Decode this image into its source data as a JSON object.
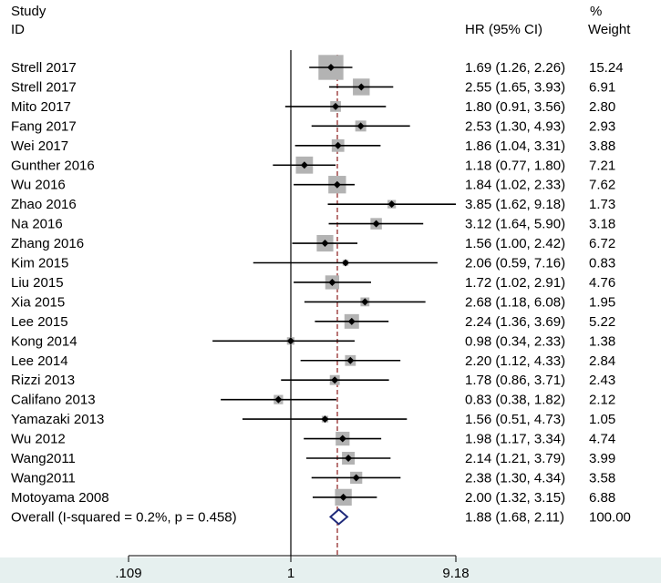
{
  "headers": {
    "study": "Study",
    "id": "ID",
    "hr": "HR (95% CI)",
    "pct": "%",
    "weight": "Weight"
  },
  "chart_data": {
    "type": "forest",
    "xscale": "log",
    "xlim": [
      0.109,
      9.18
    ],
    "xticks": [
      ".109",
      "1",
      "9.18"
    ],
    "null_line": 1,
    "pooled_line": 1.88,
    "studies": [
      {
        "id": "Strell 2017",
        "hr": 1.69,
        "lo": 1.26,
        "hi": 2.26,
        "ci_text": "1.69 (1.26, 2.26)",
        "weight": 15.24,
        "weight_text": "15.24"
      },
      {
        "id": "Strell 2017",
        "hr": 2.55,
        "lo": 1.65,
        "hi": 3.93,
        "ci_text": "2.55 (1.65, 3.93)",
        "weight": 6.91,
        "weight_text": "6.91"
      },
      {
        "id": "Mito 2017",
        "hr": 1.8,
        "lo": 0.91,
        "hi": 3.56,
        "ci_text": "1.80 (0.91, 3.56)",
        "weight": 2.8,
        "weight_text": "2.80"
      },
      {
        "id": "Fang 2017",
        "hr": 2.53,
        "lo": 1.3,
        "hi": 4.93,
        "ci_text": "2.53 (1.30, 4.93)",
        "weight": 2.93,
        "weight_text": "2.93"
      },
      {
        "id": "Wei 2017",
        "hr": 1.86,
        "lo": 1.04,
        "hi": 3.31,
        "ci_text": "1.86 (1.04, 3.31)",
        "weight": 3.88,
        "weight_text": "3.88"
      },
      {
        "id": "Gunther 2016",
        "hr": 1.18,
        "lo": 0.77,
        "hi": 1.8,
        "ci_text": "1.18 (0.77, 1.80)",
        "weight": 7.21,
        "weight_text": "7.21"
      },
      {
        "id": "Wu 2016",
        "hr": 1.84,
        "lo": 1.02,
        "hi": 2.33,
        "ci_text": "1.84 (1.02, 2.33)",
        "weight": 7.62,
        "weight_text": "7.62"
      },
      {
        "id": "Zhao 2016",
        "hr": 3.85,
        "lo": 1.62,
        "hi": 9.18,
        "ci_text": "3.85 (1.62, 9.18)",
        "weight": 1.73,
        "weight_text": "1.73"
      },
      {
        "id": "Na 2016",
        "hr": 3.12,
        "lo": 1.64,
        "hi": 5.9,
        "ci_text": "3.12 (1.64, 5.90)",
        "weight": 3.18,
        "weight_text": "3.18"
      },
      {
        "id": "Zhang 2016",
        "hr": 1.56,
        "lo": 1.0,
        "hi": 2.42,
        "ci_text": "1.56 (1.00, 2.42)",
        "weight": 6.72,
        "weight_text": "6.72"
      },
      {
        "id": "Kim 2015",
        "hr": 2.06,
        "lo": 0.59,
        "hi": 7.16,
        "ci_text": "2.06 (0.59, 7.16)",
        "weight": 0.83,
        "weight_text": "0.83"
      },
      {
        "id": "Liu 2015",
        "hr": 1.72,
        "lo": 1.02,
        "hi": 2.91,
        "ci_text": "1.72 (1.02, 2.91)",
        "weight": 4.76,
        "weight_text": "4.76"
      },
      {
        "id": "Xia 2015",
        "hr": 2.68,
        "lo": 1.18,
        "hi": 6.08,
        "ci_text": "2.68 (1.18, 6.08)",
        "weight": 1.95,
        "weight_text": "1.95"
      },
      {
        "id": "Lee 2015",
        "hr": 2.24,
        "lo": 1.36,
        "hi": 3.69,
        "ci_text": "2.24 (1.36, 3.69)",
        "weight": 5.22,
        "weight_text": "5.22"
      },
      {
        "id": "Kong 2014",
        "hr": 0.98,
        "lo": 0.34,
        "hi": 2.33,
        "ci_text": "0.98 (0.34, 2.33)",
        "weight": 1.38,
        "weight_text": "1.38"
      },
      {
        "id": "Lee 2014",
        "hr": 2.2,
        "lo": 1.12,
        "hi": 4.33,
        "ci_text": "2.20 (1.12, 4.33)",
        "weight": 2.84,
        "weight_text": "2.84"
      },
      {
        "id": "Rizzi 2013",
        "hr": 1.78,
        "lo": 0.86,
        "hi": 3.71,
        "ci_text": "1.78 (0.86, 3.71)",
        "weight": 2.43,
        "weight_text": "2.43"
      },
      {
        "id": "Califano 2013",
        "hr": 0.83,
        "lo": 0.38,
        "hi": 1.82,
        "ci_text": "0.83 (0.38, 1.82)",
        "weight": 2.12,
        "weight_text": "2.12"
      },
      {
        "id": "Yamazaki 2013",
        "hr": 1.56,
        "lo": 0.51,
        "hi": 4.73,
        "ci_text": "1.56 (0.51, 4.73)",
        "weight": 1.05,
        "weight_text": "1.05"
      },
      {
        "id": "Wu 2012",
        "hr": 1.98,
        "lo": 1.17,
        "hi": 3.34,
        "ci_text": "1.98 (1.17, 3.34)",
        "weight": 4.74,
        "weight_text": "4.74"
      },
      {
        "id": "Wang2011",
        "hr": 2.14,
        "lo": 1.21,
        "hi": 3.79,
        "ci_text": "2.14 (1.21, 3.79)",
        "weight": 3.99,
        "weight_text": "3.99"
      },
      {
        "id": "Wang2011",
        "hr": 2.38,
        "lo": 1.3,
        "hi": 4.34,
        "ci_text": "2.38 (1.30, 4.34)",
        "weight": 3.58,
        "weight_text": "3.58"
      },
      {
        "id": "Motoyama 2008",
        "hr": 2.0,
        "lo": 1.32,
        "hi": 3.15,
        "ci_text": "2.00 (1.32, 3.15)",
        "weight": 6.88,
        "weight_text": "6.88"
      }
    ],
    "overall": {
      "label": "Overall  (I-squared = 0.2%, p = 0.458)",
      "hr": 1.88,
      "lo": 1.68,
      "hi": 2.11,
      "ci_text": "1.88 (1.68, 2.11)",
      "weight_text": "100.00"
    },
    "colors": {
      "box": "#b3b3b3",
      "diamond": "#1f2a7a",
      "pooled_line": "#8b1a1a",
      "axis_band": "#e6f0ef"
    }
  }
}
